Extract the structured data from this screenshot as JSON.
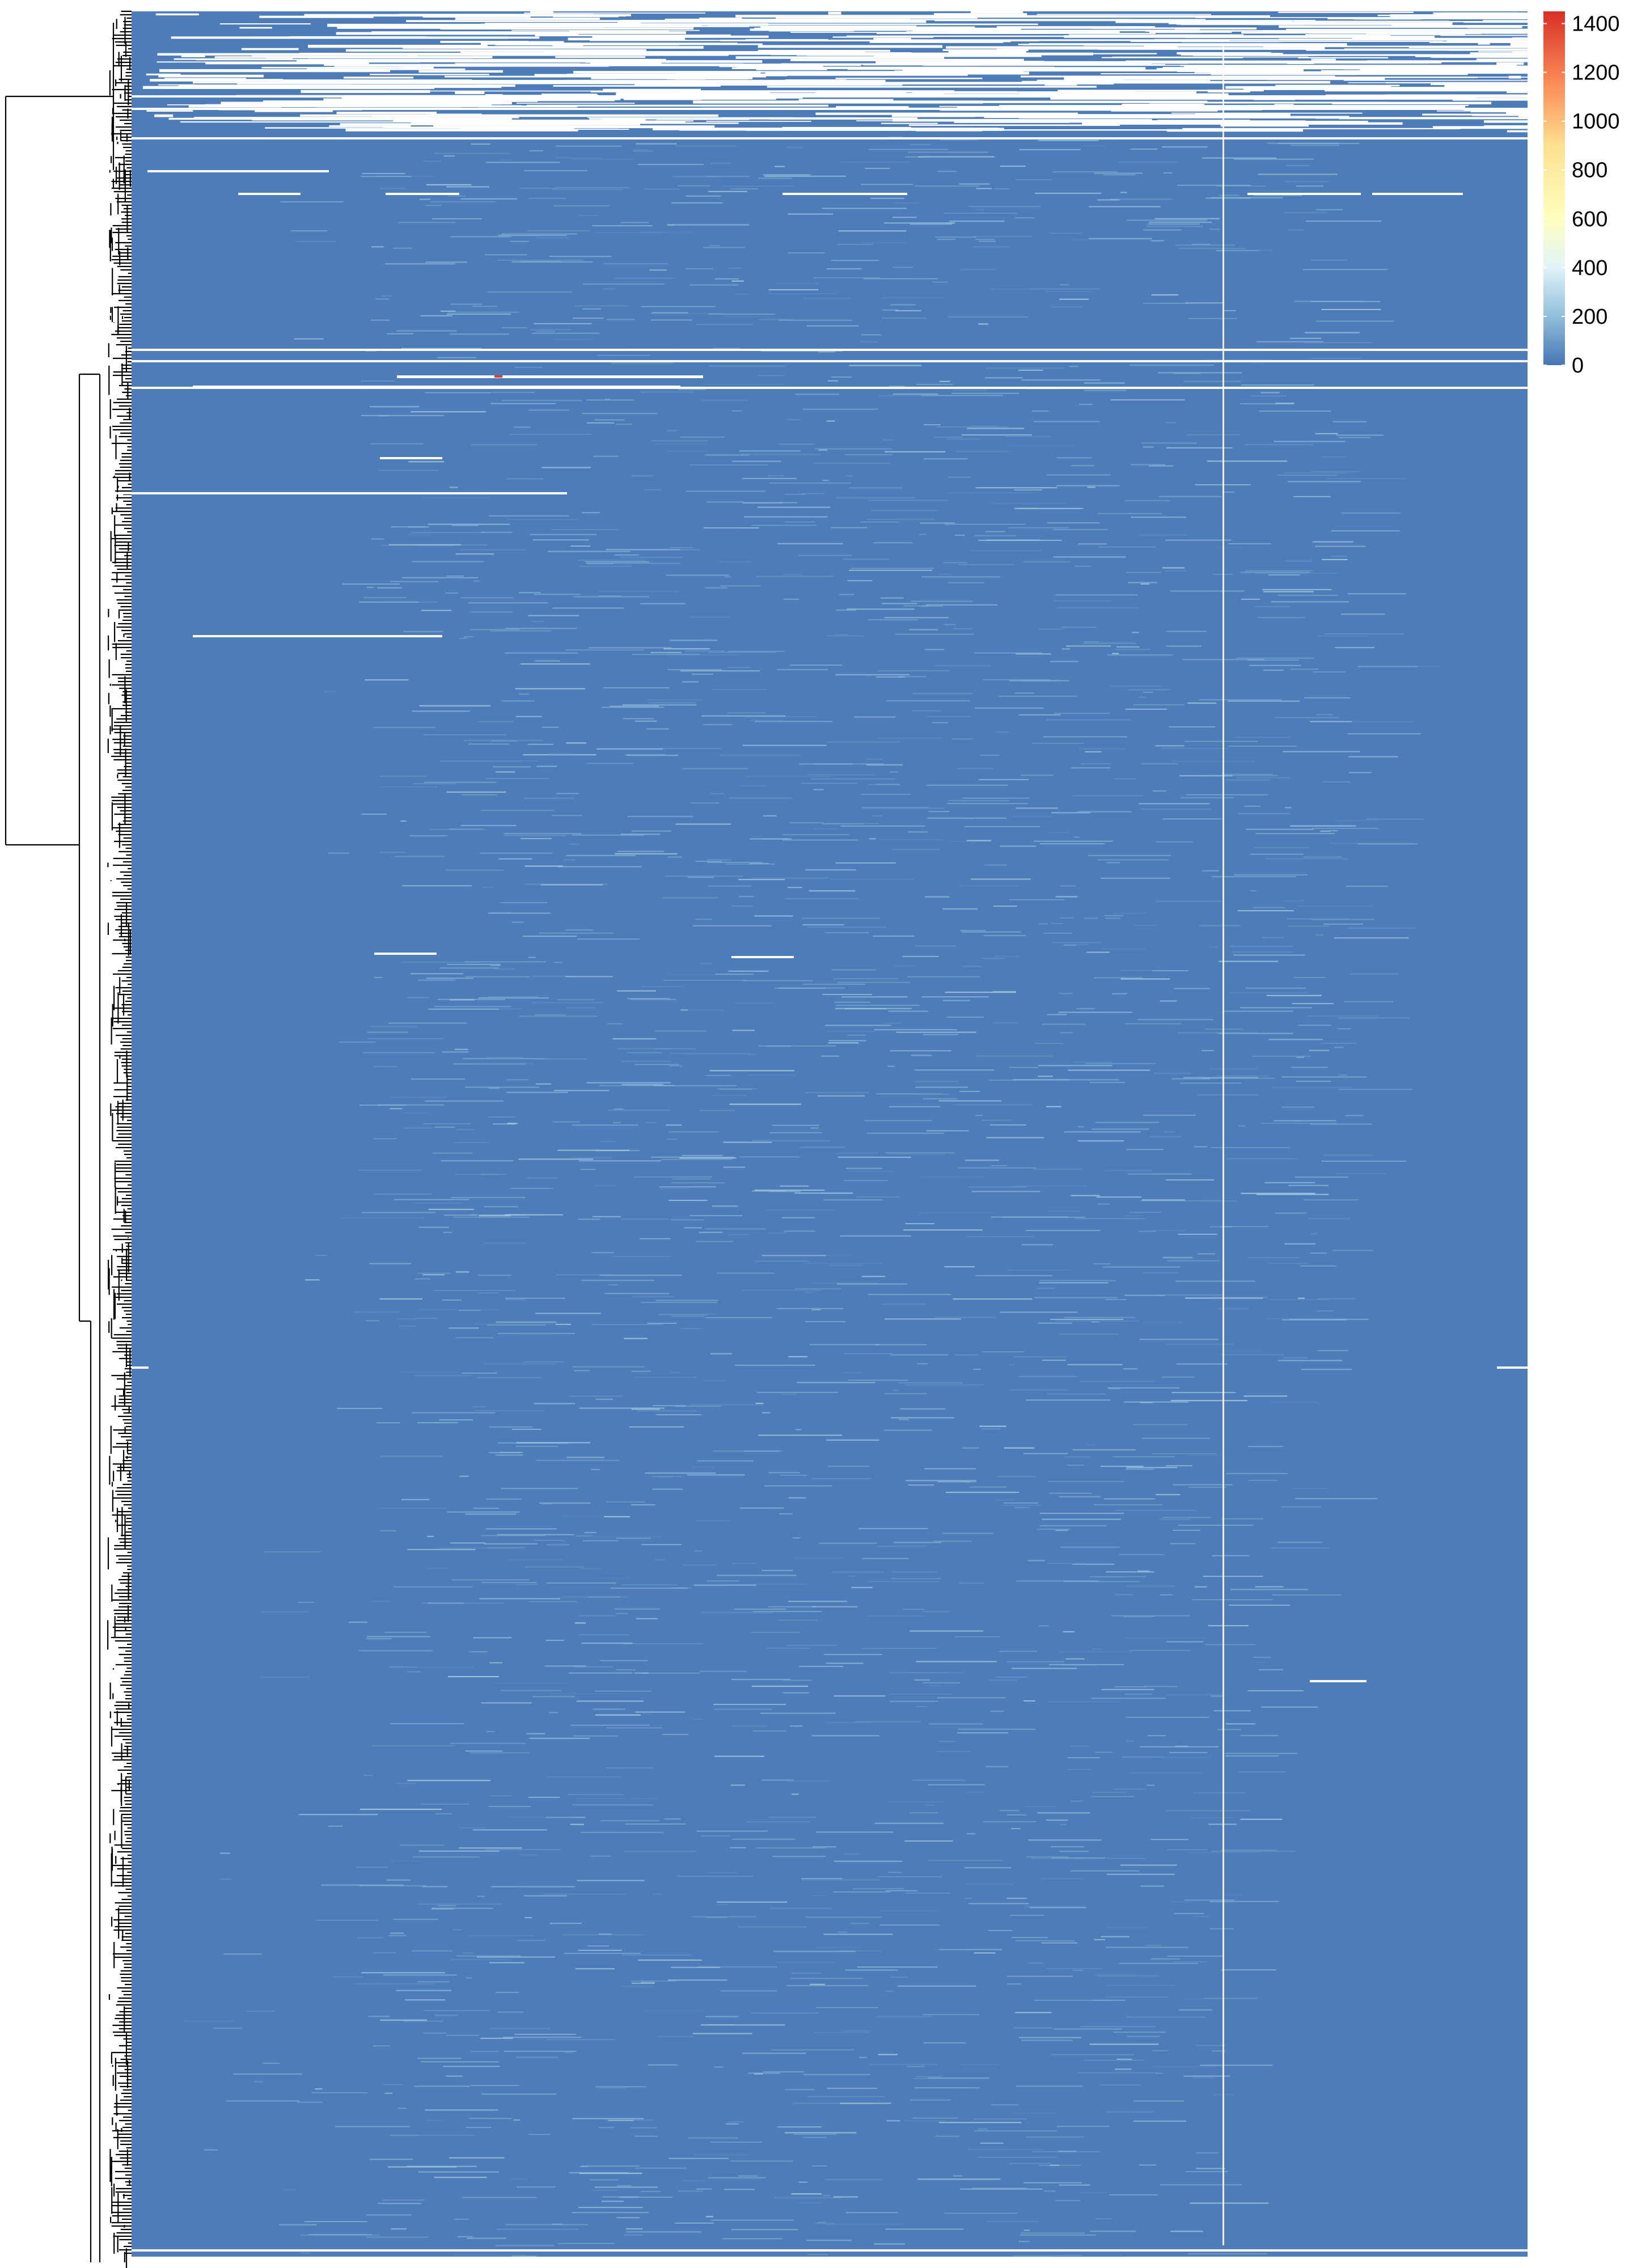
{
  "chart_data": {
    "type": "heatmap",
    "title": "",
    "xlabel": "",
    "ylabel": "",
    "row_dendrogram": true,
    "color_scale": {
      "range": [
        0,
        1450
      ],
      "ticks": [
        0,
        200,
        400,
        600,
        800,
        1000,
        1200,
        1400
      ],
      "stops": [
        {
          "value": 0,
          "color": "#4575b4"
        },
        {
          "value": 200,
          "color": "#91bfdb"
        },
        {
          "value": 400,
          "color": "#e0f3f8"
        },
        {
          "value": 600,
          "color": "#ffffbf"
        },
        {
          "value": 900,
          "color": "#fee090"
        },
        {
          "value": 1150,
          "color": "#fc8d59"
        },
        {
          "value": 1450,
          "color": "#d73027"
        }
      ],
      "legend_position": "top-right"
    },
    "cells": {
      "background_value": 20,
      "missing_color": "#ffffff",
      "visible_features": [
        "sparse missing-value rows at top of matrix",
        "brighter band of values around 100-300 in middle columns",
        "single high value near top-left (~1400)",
        "vertical missing column at right side"
      ]
    }
  }
}
